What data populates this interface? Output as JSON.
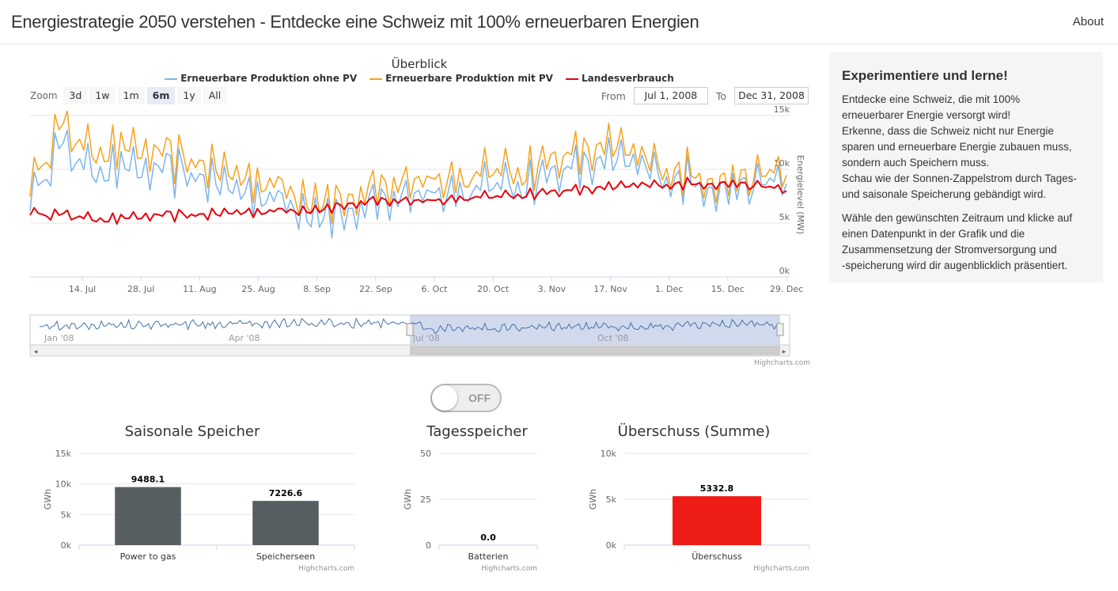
{
  "navbar": {
    "title": "Energiestrategie 2050 verstehen - Entdecke eine Schweiz mit 100% erneuerbaren Energien",
    "about": "About"
  },
  "main_chart": {
    "title": "Überblick",
    "zoom_label": "Zoom",
    "zoom_buttons": [
      "3d",
      "1w",
      "1m",
      "6m",
      "1y",
      "All"
    ],
    "zoom_selected": "6m",
    "from_label": "From",
    "from_value": "Jul 1, 2008",
    "to_label": "To",
    "to_value": "Dec 31, 2008",
    "credits": "Highcharts.com"
  },
  "sidebar": {
    "heading": "Experimentiere und lerne!",
    "lines": [
      "Entdecke eine Schweiz, die mit 100%",
      "erneuerbarer Energie versorgt wird!",
      "Erkenne, dass die Schweiz nicht nur Energie",
      "sparen und erneuerbare Energie zubauen muss,",
      "sondern auch Speichern muss.",
      "Schau wie der Sonnen-Zappelstrom durch Tages-",
      "und saisonale Speicherung gebändigt wird."
    ],
    "lines2": [
      "Wähle den gewünschten Zeitraum und klicke auf",
      "einen Datenpunkt in der Grafik und die",
      "Zusammensetzung der Stromversorgung und",
      "-speicherung wird dir augenblicklich präsentiert."
    ]
  },
  "toggle": {
    "label": "OFF",
    "state": "off"
  },
  "chart_data": [
    {
      "type": "line",
      "title": "Überblick",
      "ylabel": "Energielevel (MW)",
      "ylim": [
        0,
        15000
      ],
      "yticks": [
        "0k",
        "5k",
        "10k",
        "15k"
      ],
      "xticks": [
        "14. Jul",
        "28. Jul",
        "11. Aug",
        "25. Aug",
        "8. Sep",
        "22. Sep",
        "6. Oct",
        "20. Oct",
        "3. Nov",
        "17. Nov",
        "1. Dec",
        "15. Dec",
        "29. Dec"
      ],
      "x_range": [
        "2008-07-01",
        "2008-12-31"
      ],
      "series": [
        {
          "name": "Erneuerbare Produktion ohne PV",
          "color": "#7cb5ec",
          "weekly_levels_MW": [
            7500,
            12500,
            10500,
            10500,
            10000,
            10000,
            9500,
            8500,
            8000,
            7000,
            6500,
            6000,
            7000,
            8000,
            8500,
            8000,
            9000,
            9000,
            10000,
            10500,
            11000,
            10500,
            9500,
            9000,
            8500,
            9000,
            9000
          ]
        },
        {
          "name": "Erneuerbare Produktion mit PV",
          "color": "#f7a11a",
          "weekly_levels_MW": [
            8500,
            14000,
            12000,
            12000,
            11500,
            11000,
            10500,
            9500,
            9000,
            8000,
            7500,
            7000,
            8000,
            9000,
            9500,
            9000,
            10000,
            10000,
            11000,
            11500,
            12000,
            11000,
            10000,
            9500,
            9000,
            9500,
            9500
          ]
        },
        {
          "name": "Landesverbrauch",
          "color": "#e8000b",
          "weekly_levels_MW": [
            6000,
            5800,
            5500,
            5400,
            5600,
            5700,
            5800,
            6000,
            6100,
            6200,
            6400,
            6700,
            7000,
            7100,
            7200,
            7300,
            7500,
            7700,
            7900,
            8100,
            8300,
            8500,
            8600,
            8700,
            8700,
            8500,
            8000
          ]
        }
      ],
      "navigator": {
        "xticks": [
          "Jan '08",
          "Apr '08",
          "Jul '08",
          "Oct '08"
        ],
        "selected_range": [
          "Jul '08",
          "Dec '08"
        ]
      }
    },
    {
      "type": "bar",
      "title": "Saisonale Speicher",
      "ylabel": "GWh",
      "ylim": [
        0,
        15000
      ],
      "yticks": [
        "0k",
        "5k",
        "10k",
        "15k"
      ],
      "categories": [
        "Power to gas",
        "Speicherseen"
      ],
      "values": [
        9488.1,
        7226.6
      ],
      "data_labels": [
        "9488.1",
        "7226.6"
      ],
      "color": "#575e61",
      "credits": "Highcharts.com"
    },
    {
      "type": "bar",
      "title": "Tagesspeicher",
      "ylabel": "GWh",
      "ylim": [
        0,
        50
      ],
      "yticks": [
        "0",
        "25",
        "50"
      ],
      "categories": [
        "Batterien"
      ],
      "values": [
        0.0
      ],
      "data_labels": [
        "0.0"
      ],
      "color": "#575e61",
      "credits": "Highcharts.com"
    },
    {
      "type": "bar",
      "title": "Überschuss (Summe)",
      "ylabel": "GWh",
      "ylim": [
        0,
        10000
      ],
      "yticks": [
        "0k",
        "5k",
        "10k"
      ],
      "categories": [
        "Überschuss"
      ],
      "values": [
        5332.8
      ],
      "data_labels": [
        "5332.8"
      ],
      "color": "#ee1c16",
      "credits": "Highcharts.com"
    }
  ]
}
